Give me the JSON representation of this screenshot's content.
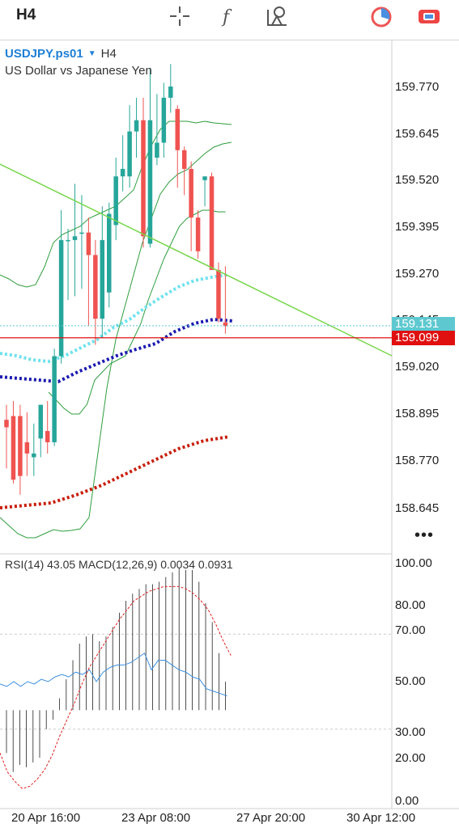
{
  "toolbar": {
    "timeframe": "H4",
    "icons": [
      "crosshair-icon",
      "function-icon",
      "objects-icon",
      "timer-icon",
      "trade-icon"
    ]
  },
  "symbol": {
    "name": "USDJPY.ps01",
    "timeframe": "H4",
    "description": "US Dollar vs Japanese Yen"
  },
  "price_axis": [
    "159.770",
    "159.645",
    "159.520",
    "159.395",
    "159.270",
    "159.145",
    "159.020",
    "158.895",
    "158.770",
    "158.645"
  ],
  "bid_badge": "159.131",
  "ask_badge": "159.099",
  "indicator_label": "RSI(14) 43.05 MACD(12,26,9) 0.0034 0.0931",
  "indicator_axis": [
    "100.00",
    "80.00",
    "70.00",
    "50.00",
    "30.00",
    "20.00",
    "0.00"
  ],
  "time_axis": [
    "20 Apr 16:00",
    "23 Apr 08:00",
    "27 Apr 20:00",
    "30 Apr 12:00"
  ],
  "more": "•••",
  "colors": {
    "bull": "#26a69a",
    "bear": "#ef5350",
    "bid": "#5ec8d0",
    "ask": "#e01010",
    "ma_fast": "#6ee2ee",
    "ma_mid": "#1a1ab0",
    "ma_slow": "#c81e0a",
    "bands": "#2e9e3e",
    "trendline": "#77d64a",
    "rsi": "#3b8fe0",
    "macd_signal": "#e02020"
  },
  "chart_data": {
    "type": "candlestick",
    "symbol": "USDJPY.ps01",
    "timeframe": "H4",
    "candles": [
      {
        "o": 158.88,
        "h": 158.92,
        "l": 158.75,
        "c": 158.86
      },
      {
        "o": 158.89,
        "h": 158.93,
        "l": 158.71,
        "c": 158.72
      },
      {
        "o": 158.89,
        "h": 158.92,
        "l": 158.68,
        "c": 158.73
      },
      {
        "o": 158.82,
        "h": 158.9,
        "l": 158.73,
        "c": 158.79
      },
      {
        "o": 158.78,
        "h": 158.87,
        "l": 158.73,
        "c": 158.79
      },
      {
        "o": 158.83,
        "h": 158.92,
        "l": 158.78,
        "c": 158.92
      },
      {
        "o": 158.85,
        "h": 158.93,
        "l": 158.79,
        "c": 158.82
      },
      {
        "o": 158.82,
        "h": 159.07,
        "l": 158.81,
        "c": 159.05
      },
      {
        "o": 159.05,
        "h": 159.44,
        "l": 159.03,
        "c": 159.36
      },
      {
        "o": 159.36,
        "h": 159.39,
        "l": 159.2,
        "c": 159.36
      },
      {
        "o": 159.36,
        "h": 159.51,
        "l": 159.21,
        "c": 159.37
      },
      {
        "o": 159.38,
        "h": 159.48,
        "l": 159.23,
        "c": 159.38
      },
      {
        "o": 159.38,
        "h": 159.42,
        "l": 159.13,
        "c": 159.32
      },
      {
        "o": 159.32,
        "h": 159.36,
        "l": 159.08,
        "c": 159.15
      },
      {
        "o": 159.15,
        "h": 159.45,
        "l": 159.1,
        "c": 159.36
      },
      {
        "o": 159.22,
        "h": 159.46,
        "l": 159.18,
        "c": 159.43
      },
      {
        "o": 159.4,
        "h": 159.58,
        "l": 159.36,
        "c": 159.53
      },
      {
        "o": 159.53,
        "h": 159.64,
        "l": 159.49,
        "c": 159.55
      },
      {
        "o": 159.53,
        "h": 159.72,
        "l": 159.5,
        "c": 159.65
      },
      {
        "o": 159.65,
        "h": 159.74,
        "l": 159.58,
        "c": 159.68
      },
      {
        "o": 159.68,
        "h": 159.74,
        "l": 159.34,
        "c": 159.37
      },
      {
        "o": 159.35,
        "h": 159.82,
        "l": 159.34,
        "c": 159.68
      },
      {
        "o": 159.58,
        "h": 159.75,
        "l": 159.56,
        "c": 159.62
      },
      {
        "o": 159.62,
        "h": 159.78,
        "l": 159.58,
        "c": 159.74
      },
      {
        "o": 159.74,
        "h": 159.83,
        "l": 159.7,
        "c": 159.77
      },
      {
        "o": 159.71,
        "h": 159.72,
        "l": 159.5,
        "c": 159.6
      },
      {
        "o": 159.6,
        "h": 159.61,
        "l": 159.48,
        "c": 159.55
      },
      {
        "o": 159.55,
        "h": 159.57,
        "l": 159.33,
        "c": 159.42
      },
      {
        "o": 159.42,
        "h": 159.44,
        "l": 159.31,
        "c": 159.33
      },
      {
        "o": 159.52,
        "h": 159.53,
        "l": 159.45,
        "c": 159.53
      },
      {
        "o": 159.53,
        "h": 159.54,
        "l": 159.28,
        "c": 159.28
      },
      {
        "o": 159.28,
        "h": 159.3,
        "l": 159.14,
        "c": 159.15
      },
      {
        "o": 159.14,
        "h": 159.29,
        "l": 159.11,
        "c": 159.13
      }
    ],
    "bid": 159.131,
    "ask": 159.099,
    "ylim": [
      158.58,
      159.86
    ],
    "x_ticks": [
      "20 Apr 16:00",
      "23 Apr 08:00",
      "27 Apr 20:00",
      "30 Apr 12:00"
    ],
    "rsi": {
      "period": 14,
      "value": 43.05,
      "values": [
        49,
        48,
        50,
        48,
        50,
        49,
        51,
        50,
        52,
        53,
        52,
        54,
        53,
        55,
        50,
        54,
        56,
        57,
        57,
        58,
        60,
        62,
        55,
        59,
        59,
        57,
        55,
        54,
        52,
        51,
        47,
        46,
        45,
        44
      ]
    },
    "macd": {
      "fast": 12,
      "slow": 26,
      "signal": 9,
      "value": 0.0034,
      "signal_value": 0.0931,
      "histogram_tops": [
        38,
        38,
        38,
        38,
        38,
        38,
        38,
        38,
        43,
        51,
        59,
        66,
        69,
        70,
        67,
        69,
        73,
        79,
        84,
        87,
        89,
        91,
        91,
        92,
        94,
        96,
        98,
        97,
        97,
        92,
        83,
        75,
        62,
        50,
        38
      ],
      "signal_values": [
        20,
        12,
        8,
        5,
        6,
        9,
        13,
        19,
        27,
        34,
        41,
        49,
        56,
        61,
        66,
        71,
        76,
        80,
        84,
        86,
        88,
        89,
        90,
        90,
        90,
        89,
        87,
        84,
        80,
        74,
        67,
        61
      ]
    },
    "rsi_levels": [
      70,
      30
    ],
    "indicator_ylim": [
      0,
      100
    ]
  }
}
